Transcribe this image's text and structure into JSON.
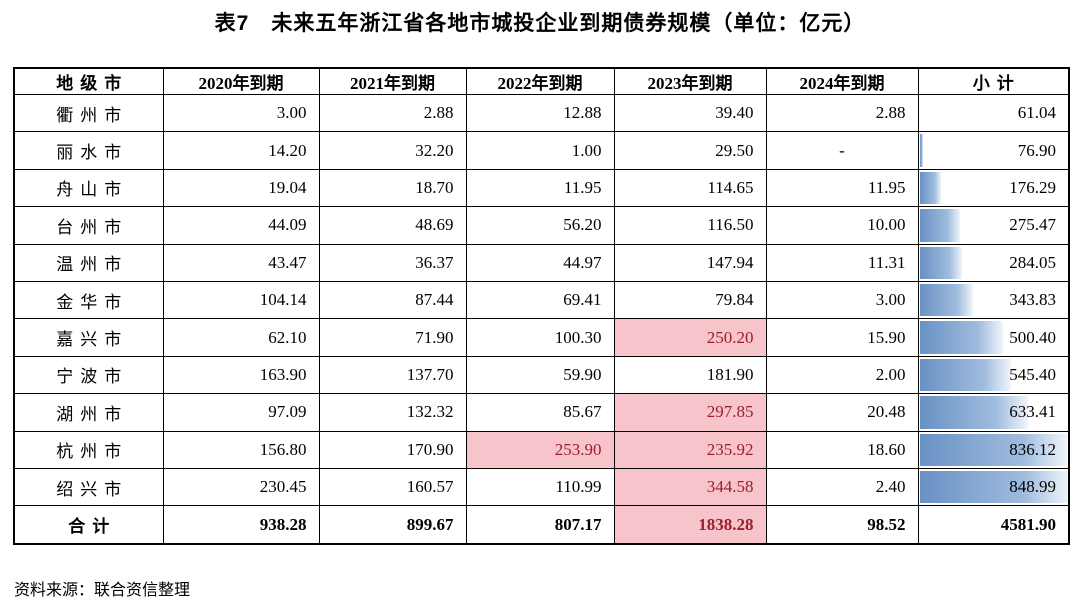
{
  "title": "表7　未来五年浙江省各地市城投企业到期债券规模（单位：亿元）",
  "source_note": "资料来源：联合资信整理",
  "colors": {
    "highlight_fill": "#F8C4CB",
    "highlight_text": "#9C1F2B",
    "bar_color_start": "#6991C4",
    "bar_color_mid": "#9FBCDE",
    "bar_color_end": "#F0F5FB",
    "border": "#000000"
  },
  "chart_data": {
    "type": "table",
    "title": "表7　未来五年浙江省各地市城投企业到期债券规模（单位：亿元）",
    "columns": [
      "地级市",
      "2020年到期",
      "2021年到期",
      "2022年到期",
      "2023年到期",
      "2024年到期",
      "小计"
    ],
    "rows": [
      {
        "city": "衢州市",
        "values": [
          "3.00",
          "2.88",
          "12.88",
          "39.40",
          "2.88"
        ],
        "subtotal": "61.04",
        "highlight": []
      },
      {
        "city": "丽水市",
        "values": [
          "14.20",
          "32.20",
          "1.00",
          "29.50",
          "-"
        ],
        "subtotal": "76.90",
        "highlight": []
      },
      {
        "city": "舟山市",
        "values": [
          "19.04",
          "18.70",
          "11.95",
          "114.65",
          "11.95"
        ],
        "subtotal": "176.29",
        "highlight": []
      },
      {
        "city": "台州市",
        "values": [
          "44.09",
          "48.69",
          "56.20",
          "116.50",
          "10.00"
        ],
        "subtotal": "275.47",
        "highlight": []
      },
      {
        "city": "温州市",
        "values": [
          "43.47",
          "36.37",
          "44.97",
          "147.94",
          "11.31"
        ],
        "subtotal": "284.05",
        "highlight": []
      },
      {
        "city": "金华市",
        "values": [
          "104.14",
          "87.44",
          "69.41",
          "79.84",
          "3.00"
        ],
        "subtotal": "343.83",
        "highlight": []
      },
      {
        "city": "嘉兴市",
        "values": [
          "62.10",
          "71.90",
          "100.30",
          "250.20",
          "15.90"
        ],
        "subtotal": "500.40",
        "highlight": [
          3
        ]
      },
      {
        "city": "宁波市",
        "values": [
          "163.90",
          "137.70",
          "59.90",
          "181.90",
          "2.00"
        ],
        "subtotal": "545.40",
        "highlight": []
      },
      {
        "city": "湖州市",
        "values": [
          "97.09",
          "132.32",
          "85.67",
          "297.85",
          "20.48"
        ],
        "subtotal": "633.41",
        "highlight": [
          3
        ]
      },
      {
        "city": "杭州市",
        "values": [
          "156.80",
          "170.90",
          "253.90",
          "235.92",
          "18.60"
        ],
        "subtotal": "836.12",
        "highlight": [
          2,
          3
        ]
      },
      {
        "city": "绍兴市",
        "values": [
          "230.45",
          "160.57",
          "110.99",
          "344.58",
          "2.40"
        ],
        "subtotal": "848.99",
        "highlight": [
          3
        ]
      }
    ],
    "total_row": {
      "city": "合计",
      "values": [
        "938.28",
        "899.67",
        "807.17",
        "1838.28",
        "98.52"
      ],
      "subtotal": "4581.90",
      "highlight": [
        3
      ]
    },
    "data_bar": {
      "column": "小计",
      "min": 61.04,
      "max": 848.99,
      "applies_to": "city_rows_only"
    }
  }
}
